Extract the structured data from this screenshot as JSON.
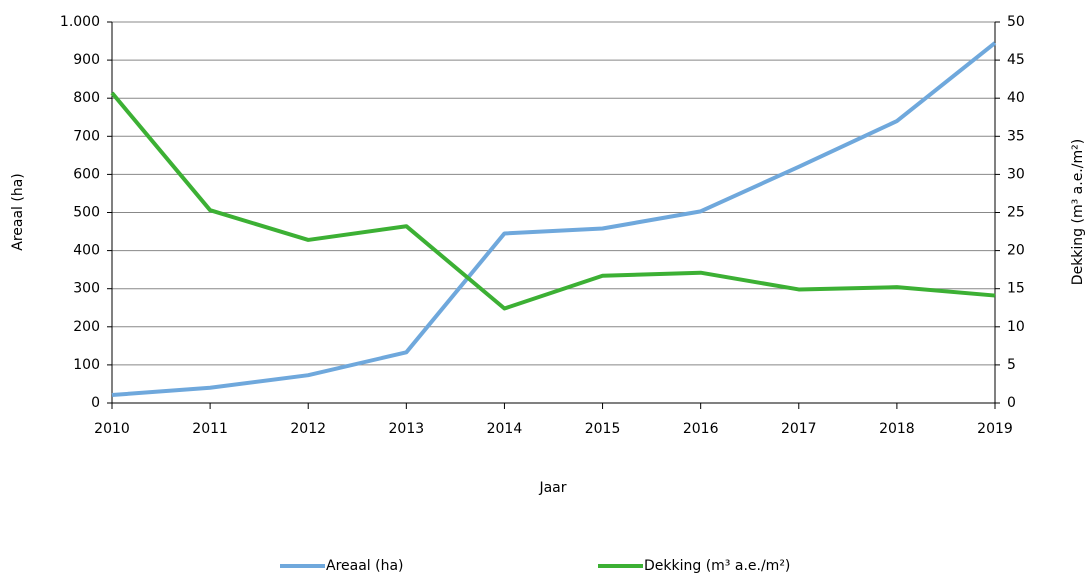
{
  "chart_data": {
    "type": "line",
    "x_label": "Jaar",
    "y_label": "Areaal (ha)",
    "y2_label": "Dekking (m³ a.e./m²)",
    "x": [
      2010,
      2011,
      2012,
      2013,
      2014,
      2015,
      2016,
      2017,
      2018,
      2019
    ],
    "xlim": [
      2010,
      2019
    ],
    "xticks": [
      2010,
      2011,
      2012,
      2013,
      2014,
      2015,
      2016,
      2017,
      2018,
      2019
    ],
    "ylim": [
      0,
      1000
    ],
    "yticks": [
      0,
      100,
      200,
      300,
      400,
      500,
      600,
      700,
      800,
      900,
      {
        "value": 1000,
        "label": "1.000"
      }
    ],
    "y2lim": [
      0,
      50
    ],
    "y2ticks": [
      0,
      5,
      10,
      15,
      20,
      25,
      30,
      35,
      40,
      45,
      50
    ],
    "grid": true,
    "legend": "bottom",
    "series": [
      {
        "name": "Areaal (ha)",
        "color": "#6fa8dc",
        "values": [
          21,
          40,
          73,
          133,
          445,
          458,
          503,
          620,
          740,
          945
        ]
      },
      {
        "name": "Dekking (m³ a.e./m²)",
        "color": "#3cb034",
        "axis": "y2",
        "values": [
          40.7,
          25.3,
          21.4,
          23.2,
          12.4,
          16.7,
          17.1,
          14.9,
          15.2,
          14.1
        ]
      }
    ]
  }
}
